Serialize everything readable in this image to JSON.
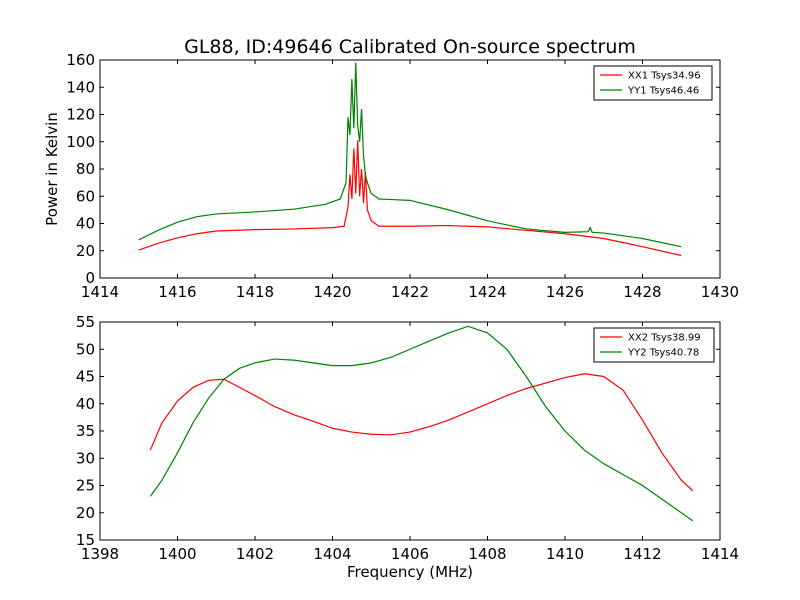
{
  "figure": {
    "title": "GL88, ID:49646 Calibrated On-source spectrum"
  },
  "chart_data": [
    {
      "type": "line",
      "title": "GL88, ID:49646 Calibrated On-source spectrum",
      "xlabel": "",
      "ylabel": "Power in Kelvin",
      "xlim": [
        1414,
        1430
      ],
      "ylim": [
        0,
        160
      ],
      "xticks": [
        1414,
        1416,
        1418,
        1420,
        1422,
        1424,
        1426,
        1428,
        1430
      ],
      "yticks": [
        0,
        20,
        40,
        60,
        80,
        100,
        120,
        140,
        160
      ],
      "grid": false,
      "legend_position": "top-right",
      "series": [
        {
          "name": "XX1 Tsys34.96",
          "color": "#ff0000",
          "x": [
            1415.0,
            1415.5,
            1416.0,
            1416.5,
            1417.0,
            1418.0,
            1419.0,
            1420.0,
            1420.3,
            1420.4,
            1420.45,
            1420.5,
            1420.55,
            1420.6,
            1420.65,
            1420.7,
            1420.75,
            1420.8,
            1420.85,
            1420.9,
            1421.0,
            1421.2,
            1422.0,
            1423.0,
            1424.0,
            1425.0,
            1426.0,
            1427.0,
            1428.0,
            1429.0
          ],
          "y": [
            20.5,
            25.5,
            29.5,
            32.5,
            34.5,
            35.5,
            36.0,
            37.0,
            38.0,
            52.0,
            76.0,
            58.0,
            95.0,
            62.0,
            101.0,
            60.0,
            80.0,
            55.0,
            78.0,
            50.0,
            42.0,
            38.0,
            38.0,
            38.5,
            37.5,
            35.0,
            32.5,
            29.0,
            23.0,
            16.5
          ]
        },
        {
          "name": "YY1 Tsys46.46",
          "color": "#008000",
          "x": [
            1415.0,
            1415.5,
            1416.0,
            1416.5,
            1417.0,
            1418.0,
            1419.0,
            1419.8,
            1420.2,
            1420.35,
            1420.4,
            1420.45,
            1420.5,
            1420.55,
            1420.6,
            1420.65,
            1420.7,
            1420.75,
            1420.8,
            1420.85,
            1420.9,
            1421.0,
            1421.2,
            1422.0,
            1423.0,
            1424.0,
            1425.0,
            1426.0,
            1426.6,
            1426.65,
            1426.7,
            1427.0,
            1428.0,
            1429.0
          ],
          "y": [
            28.0,
            35.0,
            41.0,
            45.0,
            47.0,
            48.5,
            50.5,
            54.0,
            58.0,
            70.0,
            118.0,
            105.0,
            146.0,
            110.0,
            158.0,
            112.0,
            100.0,
            124.0,
            90.0,
            75.0,
            70.0,
            62.0,
            58.0,
            57.0,
            50.0,
            42.0,
            36.0,
            33.5,
            34.0,
            37.0,
            33.5,
            33.0,
            29.0,
            23.0
          ]
        }
      ]
    },
    {
      "type": "line",
      "title": "",
      "xlabel": "Frequency (MHz)",
      "ylabel": "",
      "xlim": [
        1398,
        1414
      ],
      "ylim": [
        15,
        55
      ],
      "xticks": [
        1398,
        1400,
        1402,
        1404,
        1406,
        1408,
        1410,
        1412,
        1414
      ],
      "yticks": [
        15,
        20,
        25,
        30,
        35,
        40,
        45,
        50,
        55
      ],
      "grid": false,
      "legend_position": "top-right",
      "series": [
        {
          "name": "XX2 Tsys38.99",
          "color": "#ff0000",
          "x": [
            1399.3,
            1399.6,
            1400.0,
            1400.4,
            1400.8,
            1401.2,
            1401.6,
            1402.0,
            1402.5,
            1403.0,
            1403.5,
            1404.0,
            1404.5,
            1405.0,
            1405.5,
            1406.0,
            1406.5,
            1407.0,
            1407.5,
            1408.0,
            1408.5,
            1409.0,
            1409.5,
            1410.0,
            1410.5,
            1411.0,
            1411.5,
            1412.0,
            1412.5,
            1413.0,
            1413.3
          ],
          "y": [
            31.5,
            36.5,
            40.5,
            43.0,
            44.3,
            44.5,
            43.0,
            41.5,
            39.5,
            38.0,
            36.8,
            35.5,
            34.8,
            34.4,
            34.3,
            34.8,
            35.8,
            37.0,
            38.5,
            40.0,
            41.5,
            42.8,
            43.8,
            44.8,
            45.5,
            45.0,
            42.5,
            37.0,
            31.0,
            26.0,
            24.0
          ]
        },
        {
          "name": "YY2 Tsys40.78",
          "color": "#008000",
          "x": [
            1399.3,
            1399.6,
            1400.0,
            1400.4,
            1400.8,
            1401.2,
            1401.6,
            1402.0,
            1402.5,
            1403.0,
            1403.5,
            1404.0,
            1404.5,
            1405.0,
            1405.5,
            1406.0,
            1406.5,
            1407.0,
            1407.5,
            1408.0,
            1408.5,
            1409.0,
            1409.5,
            1410.0,
            1410.5,
            1411.0,
            1411.5,
            1412.0,
            1412.5,
            1413.0,
            1413.3
          ],
          "y": [
            23.0,
            26.0,
            31.0,
            36.5,
            41.0,
            44.5,
            46.5,
            47.5,
            48.2,
            48.0,
            47.5,
            47.0,
            47.0,
            47.5,
            48.5,
            50.0,
            51.5,
            53.0,
            54.2,
            53.0,
            50.0,
            45.0,
            39.5,
            35.0,
            31.5,
            29.0,
            27.0,
            25.0,
            22.5,
            20.0,
            18.5
          ]
        }
      ]
    }
  ]
}
